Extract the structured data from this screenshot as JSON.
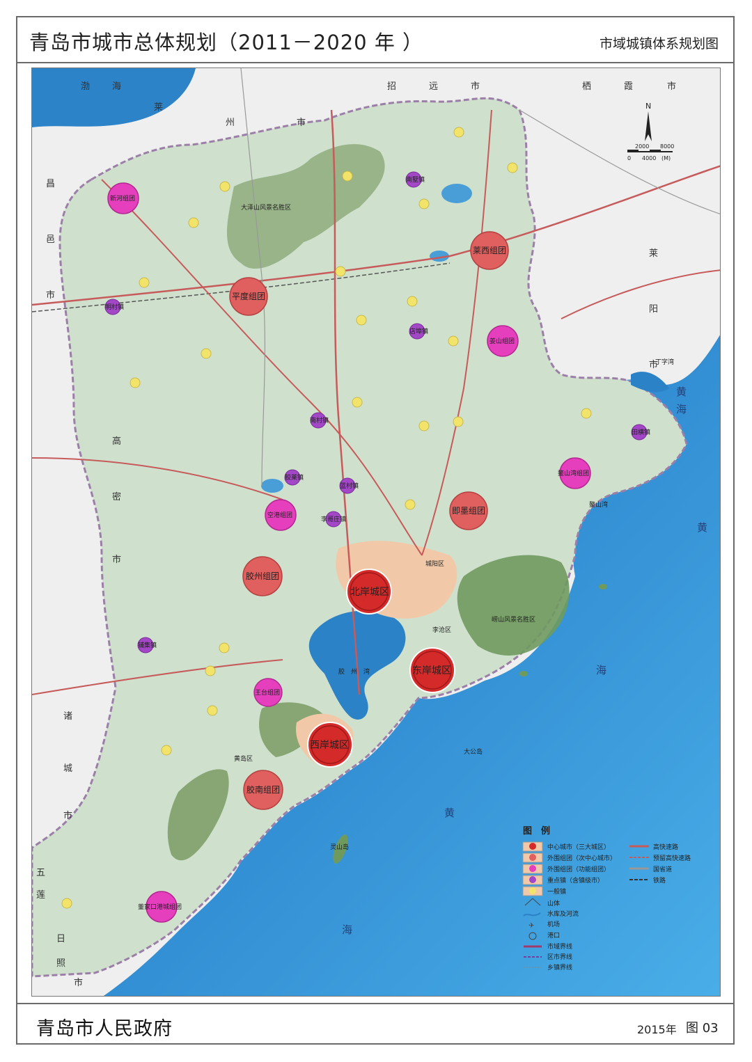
{
  "header": {
    "title": "青岛市城市总体规划（2011－2020 年 ）",
    "subtitle": "市域城镇体系规划图"
  },
  "footer": {
    "org": "青岛市人民政府",
    "year": "2015年",
    "figure": "图 03"
  },
  "colors": {
    "sea": "#2f8fd0",
    "land": "#c9dcc8",
    "mountain": "#7ea06a",
    "core_city": "#d42a2a",
    "outer_group": "#e06060",
    "function_group": "#e040b8",
    "key_town": "#a040c0",
    "general_town": "#f2e46a"
  },
  "core_cities": [
    "北岸城区",
    "东岸城区",
    "西岸城区"
  ],
  "outer_groups": [
    "平度组团",
    "莱西组团",
    "即墨组团",
    "胶州组团",
    "胶南组团"
  ],
  "function_groups": [
    "新河组团",
    "姜山组团",
    "鳌山湾组团",
    "空港组团",
    "王台组团",
    "董家口港城组团"
  ],
  "key_towns": [
    "南墅镇",
    "明村镇",
    "店埠镇",
    "南村镇",
    "田横镇",
    "胶莱镇",
    "蓝村镇",
    "李哥庄镇",
    "铺集镇"
  ],
  "geo_labels": {
    "bohai1": "渤",
    "bohai2": "海",
    "zhao": "招",
    "yuan": "远",
    "shi1": "市",
    "qi": "栖",
    "xia": "霞",
    "shi2": "市",
    "lai1": "莱",
    "zhou": "州",
    "shi3": "市",
    "chang": "昌",
    "yi": "邑",
    "shi4": "市",
    "lai2": "莱",
    "yang": "阳",
    "shi5": "市",
    "gao": "高",
    "mi": "密",
    "shi6": "市",
    "zhu": "诸",
    "cheng": "城",
    "shi7": "市",
    "wu": "五",
    "lian": "莲",
    "ri": "日",
    "zhao2": "照",
    "shi8": "市",
    "huang1": "黄",
    "hai1": "海",
    "huang2": "黄",
    "hai2": "海",
    "huang3": "黄",
    "hai3": "海",
    "jiaozhouwan": "胶　州　湾",
    "chengyang": "城阳区",
    "licang": "李沧区",
    "huangdao": "黄岛区",
    "laoshan": "崂山风景名胜区",
    "dazeshan": "大泽山风景名胜区",
    "lingshandao": "灵山岛",
    "dagongdao": "大公岛",
    "ao_shan_wan": "鳌山湾",
    "dinzi_wan": "丁字湾"
  },
  "compass": {
    "north": "N",
    "scale_0": "0",
    "scale_1": "2000",
    "scale_2": "4000",
    "scale_3": "8000",
    "unit": "(M)"
  },
  "legend": {
    "title": "图　例",
    "items": [
      "中心城市（三大城区）",
      "外围组团（次中心城市）",
      "外围组团（功能组团）",
      "重点镇（含镇级市）",
      "一般镇",
      "山体",
      "水库及河流",
      "机场",
      "港口",
      "市域界线",
      "区市界线",
      "乡镇界线"
    ],
    "roads": [
      "高快速路",
      "预留高快速路",
      "国省道",
      "铁路"
    ]
  }
}
